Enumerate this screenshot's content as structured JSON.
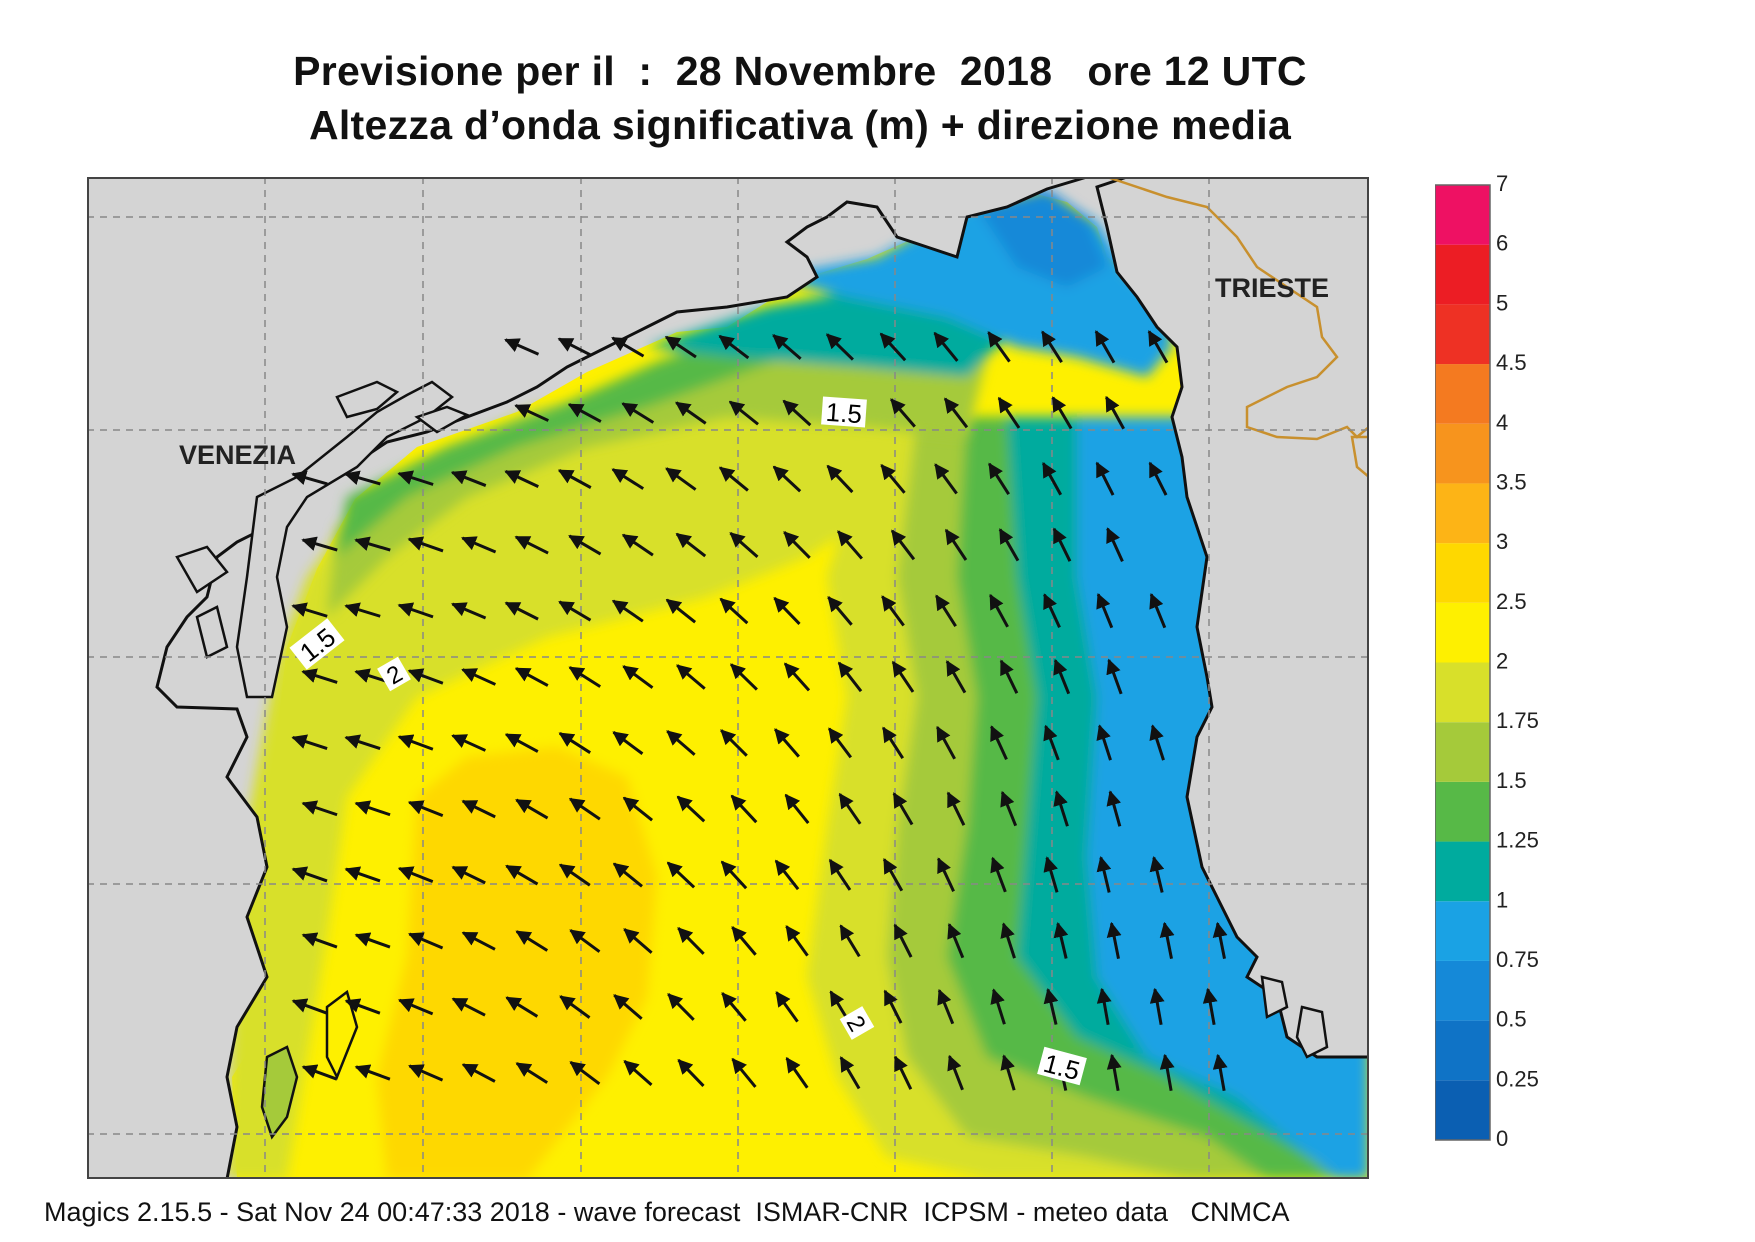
{
  "header": {
    "title_line1": "Previsione per il  :  28 Novembre  2018   ore 12 UTC",
    "title_line2": "Altezza d’onda significativa (m) + direzione media"
  },
  "map": {
    "labels": {
      "venezia": "VENEZIA",
      "trieste": "TRIESTE"
    },
    "contour_labels": [
      "1.5",
      "1.5",
      "2",
      "2",
      "1.5"
    ],
    "colors": {
      "land": "#d4d4d4",
      "coast": "#111111",
      "border": "#c8902e",
      "grid": "#888888"
    }
  },
  "legend": {
    "ticks": [
      "0",
      "0.25",
      "0.5",
      "0.75",
      "1",
      "1.25",
      "1.5",
      "1.75",
      "2",
      "2.5",
      "3",
      "3.5",
      "4",
      "4.5",
      "5",
      "6",
      "7"
    ],
    "colors": [
      "#0b5fb2",
      "#0f73c6",
      "#1589d8",
      "#1aa2e4",
      "#00ab9e",
      "#57b947",
      "#a5ca3a",
      "#d8e02a",
      "#fef000",
      "#fed800",
      "#fdb416",
      "#f7941d",
      "#f47a20",
      "#ee3124",
      "#ec1d24",
      "#ee1163"
    ]
  },
  "footer": {
    "text": "Magics 2.15.5 - Sat Nov 24 00:47:33 2018 - wave forecast  ISMAR-CNR  ICPSM - meteo data   CNMCA"
  }
}
